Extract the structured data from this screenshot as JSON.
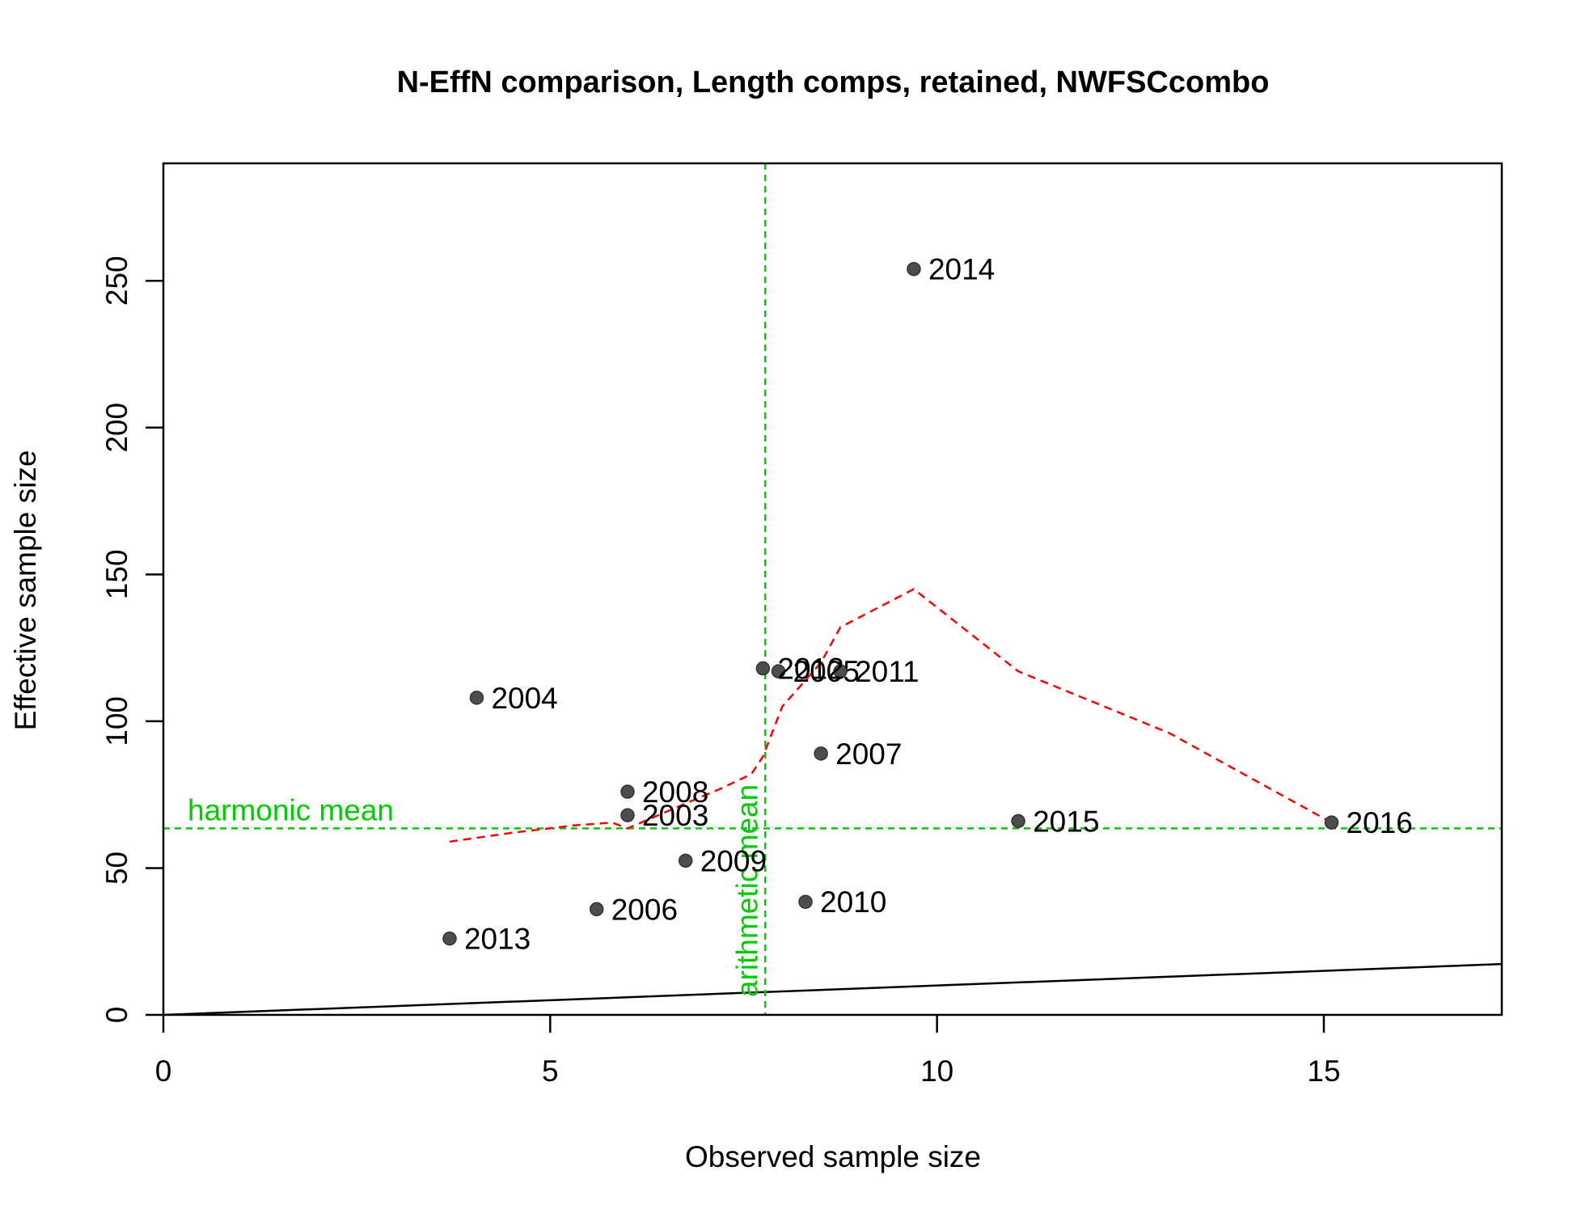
{
  "chart_data": {
    "type": "scatter",
    "title": "N-EffN comparison, Length comps, retained, NWFSCcombo",
    "xlabel": "Observed sample size",
    "ylabel": "Effective sample size",
    "xlim": [
      0,
      17.3
    ],
    "ylim": [
      0,
      290
    ],
    "x_ticks": [
      0,
      5,
      10,
      15
    ],
    "y_ticks": [
      0,
      50,
      100,
      150,
      200,
      250
    ],
    "grid": false,
    "points": [
      {
        "label": "2003",
        "x": 6.0,
        "y": 68
      },
      {
        "label": "2004",
        "x": 4.05,
        "y": 108
      },
      {
        "label": "2005",
        "x": 7.95,
        "y": 117
      },
      {
        "label": "2006",
        "x": 5.6,
        "y": 36
      },
      {
        "label": "2007",
        "x": 8.5,
        "y": 89
      },
      {
        "label": "2008",
        "x": 6.0,
        "y": 76
      },
      {
        "label": "2009",
        "x": 6.75,
        "y": 52.5
      },
      {
        "label": "2010",
        "x": 8.3,
        "y": 38.5
      },
      {
        "label": "2011",
        "x": 8.75,
        "y": 117
      },
      {
        "label": "2012",
        "x": 7.75,
        "y": 118
      },
      {
        "label": "2013",
        "x": 3.7,
        "y": 26
      },
      {
        "label": "2014",
        "x": 9.7,
        "y": 254
      },
      {
        "label": "2015",
        "x": 11.05,
        "y": 66
      },
      {
        "label": "2016",
        "x": 15.1,
        "y": 65.5
      }
    ],
    "smoother": {
      "x": [
        3.7,
        4.5,
        5.3,
        5.8,
        6.0,
        6.75,
        7.2,
        7.6,
        7.75,
        8.0,
        8.5,
        8.75,
        9.7,
        11.05,
        13.0,
        15.1
      ],
      "y": [
        59,
        62,
        64.5,
        65.5,
        63.5,
        72,
        77,
        82,
        88,
        105,
        120,
        132,
        145,
        117,
        96,
        65.5
      ]
    },
    "one_to_one_line": true,
    "reference_lines": {
      "harmonic_mean": {
        "label": "harmonic mean",
        "y": 63.5
      },
      "arithmetic_mean": {
        "label": "arithmetic mean",
        "x": 7.78
      }
    },
    "colors": {
      "points": "#4d4d4d",
      "smoother": "#ff0000",
      "reference": "#00cd00",
      "one_to_one": "#000000"
    }
  }
}
